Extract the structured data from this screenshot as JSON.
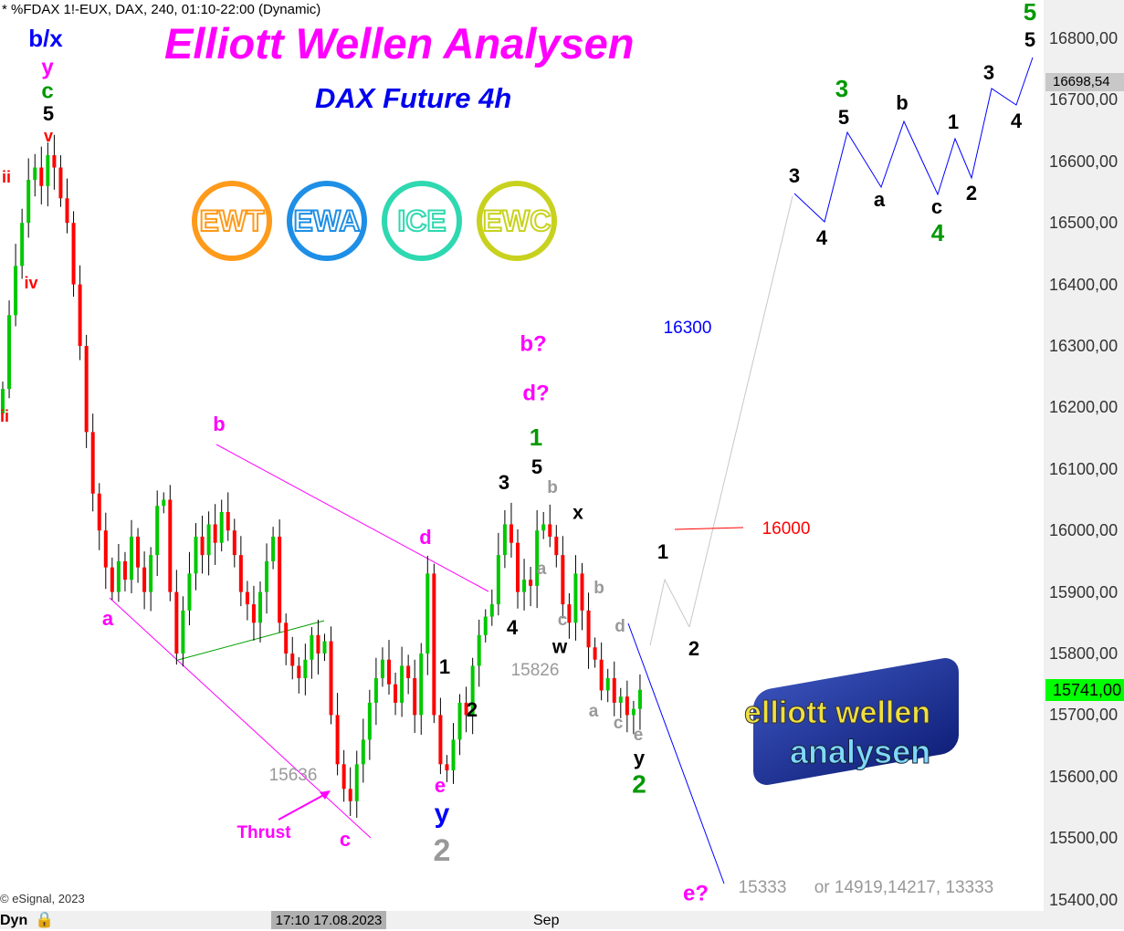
{
  "header": "* %FDAX 1!-EUX, DAX, 240, 01:10-22:00 (Dynamic)",
  "title": "Elliott Wellen Analysen",
  "subtitle": "DAX Future 4h",
  "badges": [
    {
      "label": "EWT",
      "color": "#ff9a1a"
    },
    {
      "label": "EWA",
      "color": "#1e8fe6"
    },
    {
      "label": "ICE",
      "color": "#2ed8b0"
    },
    {
      "label": "EWC",
      "color": "#c8d21e"
    }
  ],
  "logo": {
    "line1": "elliott wellen",
    "line2": "analysen"
  },
  "copyright": "© eSignal, 2023",
  "bottom": {
    "dyn": "Dyn",
    "cursor_date": "17:10 17.08.2023",
    "month": "Sep"
  },
  "chart_data": {
    "type": "candlestick",
    "symbol": "%FDAX 1!-EUX",
    "interval": "240",
    "ylim": [
      15400,
      16830
    ],
    "y_ticks": [
      "16800,00",
      "16700,00",
      "16600,00",
      "16500,00",
      "16400,00",
      "16300,00",
      "16200,00",
      "16100,00",
      "16000,00",
      "15900,00",
      "15800,00",
      "15700,00",
      "15600,00",
      "15500,00",
      "15400,00"
    ],
    "price_markers": [
      {
        "label": "16698,54",
        "color": "#c8c8c8"
      },
      {
        "label": "15741,00",
        "color": "#00ff00"
      }
    ],
    "up_color": "#00c800",
    "down_color": "#ff0000",
    "closes": [
      16230,
      16350,
      16430,
      16500,
      16570,
      16590,
      16560,
      16610,
      16590,
      16540,
      16500,
      16400,
      16300,
      16160,
      16060,
      16000,
      15940,
      15900,
      15950,
      15920,
      15990,
      15940,
      15900,
      15960,
      16040,
      16050,
      15900,
      15800,
      15870,
      15930,
      15990,
      15960,
      16010,
      15980,
      16030,
      16000,
      15960,
      15900,
      15880,
      15850,
      15900,
      15950,
      15990,
      15850,
      15800,
      15780,
      15760,
      15790,
      15830,
      15800,
      15820,
      15700,
      15620,
      15580,
      15560,
      15620,
      15660,
      15720,
      15760,
      15790,
      15750,
      15720,
      15780,
      15760,
      15700,
      15800,
      15930,
      15700,
      15620,
      15610,
      15660,
      15720,
      15700,
      15780,
      15830,
      15860,
      15880,
      15960,
      16010,
      15980,
      15900,
      15920,
      15910,
      16000,
      16010,
      15990,
      15960,
      15880,
      15850,
      15930,
      15870,
      15810,
      15790,
      15740,
      15760,
      15720,
      15730,
      15700,
      15710,
      15741
    ],
    "annotations": [
      {
        "text": "b/x",
        "color": "#0000ff"
      },
      {
        "text": "y",
        "color": "#ff00ff"
      },
      {
        "text": "c",
        "color": "#009900"
      },
      {
        "text": "5",
        "color": "#000000"
      },
      {
        "text": "v",
        "color": "#ff0000"
      },
      {
        "text": "ii",
        "color": "#ff0000"
      },
      {
        "text": "iv",
        "color": "#ff0000"
      },
      {
        "text": "ii",
        "color": "#ff0000"
      },
      {
        "text": "b",
        "color": "#ff00ff"
      },
      {
        "text": "a",
        "color": "#ff00ff"
      },
      {
        "text": "c",
        "color": "#ff00ff"
      },
      {
        "text": "Thrust",
        "color": "#ff00ff"
      },
      {
        "text": "15636",
        "color": "#999999"
      },
      {
        "text": "d",
        "color": "#ff00ff"
      },
      {
        "text": "e",
        "color": "#ff00ff"
      },
      {
        "text": "y",
        "color": "#0000ff"
      },
      {
        "text": "2",
        "color": "#999999"
      },
      {
        "text": "1",
        "color": "#000000"
      },
      {
        "text": "2",
        "color": "#000000"
      },
      {
        "text": "3",
        "color": "#000000"
      },
      {
        "text": "4",
        "color": "#000000"
      },
      {
        "text": "1",
        "color": "#009900"
      },
      {
        "text": "5",
        "color": "#000000"
      },
      {
        "text": "b",
        "color": "#999999"
      },
      {
        "text": "x",
        "color": "#000000"
      },
      {
        "text": "a",
        "color": "#999999"
      },
      {
        "text": "c",
        "color": "#999999"
      },
      {
        "text": "w",
        "color": "#000000"
      },
      {
        "text": "15826",
        "color": "#999999"
      },
      {
        "text": "b",
        "color": "#999999"
      },
      {
        "text": "d",
        "color": "#999999"
      },
      {
        "text": "a",
        "color": "#999999"
      },
      {
        "text": "c",
        "color": "#999999"
      },
      {
        "text": "e",
        "color": "#999999"
      },
      {
        "text": "y",
        "color": "#000000"
      },
      {
        "text": "2",
        "color": "#009900"
      },
      {
        "text": "b?",
        "color": "#ff00ff"
      },
      {
        "text": "d?",
        "color": "#ff00ff"
      },
      {
        "text": "16300",
        "color": "#0000ff"
      },
      {
        "text": "16000",
        "color": "#ff0000"
      },
      {
        "text": "1",
        "color": "#000000"
      },
      {
        "text": "2",
        "color": "#000000"
      },
      {
        "text": "e?",
        "color": "#ff00ff"
      },
      {
        "text": "15333",
        "color": "#999999"
      },
      {
        "text": "or 14919,14217, 13333",
        "color": "#999999"
      },
      {
        "text": "3",
        "color": "#000000"
      },
      {
        "text": "4",
        "color": "#000000"
      },
      {
        "text": "3",
        "color": "#009900"
      },
      {
        "text": "5",
        "color": "#000000"
      },
      {
        "text": "a",
        "color": "#000000"
      },
      {
        "text": "b",
        "color": "#000000"
      },
      {
        "text": "c",
        "color": "#000000"
      },
      {
        "text": "4",
        "color": "#009900"
      },
      {
        "text": "1",
        "color": "#000000"
      },
      {
        "text": "2",
        "color": "#000000"
      },
      {
        "text": "3",
        "color": "#000000"
      },
      {
        "text": "4",
        "color": "#000000"
      },
      {
        "text": "5",
        "color": "#009900"
      },
      {
        "text": "5",
        "color": "#000000"
      }
    ]
  }
}
